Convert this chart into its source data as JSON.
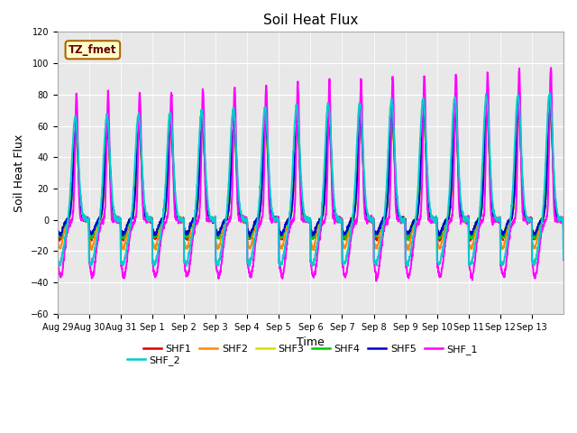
{
  "title": "Soil Heat Flux",
  "xlabel": "Time",
  "ylabel": "Soil Heat Flux",
  "ylim": [
    -60,
    120
  ],
  "yticks": [
    -60,
    -40,
    -20,
    0,
    20,
    40,
    60,
    80,
    100,
    120
  ],
  "xtick_labels": [
    "Aug 29",
    "Aug 30",
    "Aug 31",
    "Sep 1",
    "Sep 2",
    "Sep 3",
    "Sep 4",
    "Sep 5",
    "Sep 6",
    "Sep 7",
    "Sep 8",
    "Sep 9",
    "Sep 10",
    "Sep 11",
    "Sep 12",
    "Sep 13"
  ],
  "legend_labels": [
    "SHF1",
    "SHF2",
    "SHF3",
    "SHF4",
    "SHF5",
    "SHF_1",
    "SHF_2"
  ],
  "legend_colors": [
    "#dd0000",
    "#ff8800",
    "#dddd00",
    "#00cc00",
    "#0000cc",
    "#ff00ff",
    "#00cccc"
  ],
  "tz_label": "TZ_fmet",
  "bg_color": "#e8e8e8",
  "fig_bg": "#ffffff",
  "title_fontsize": 11,
  "n_days": 16,
  "pts_per_day": 144,
  "start_day": 0
}
